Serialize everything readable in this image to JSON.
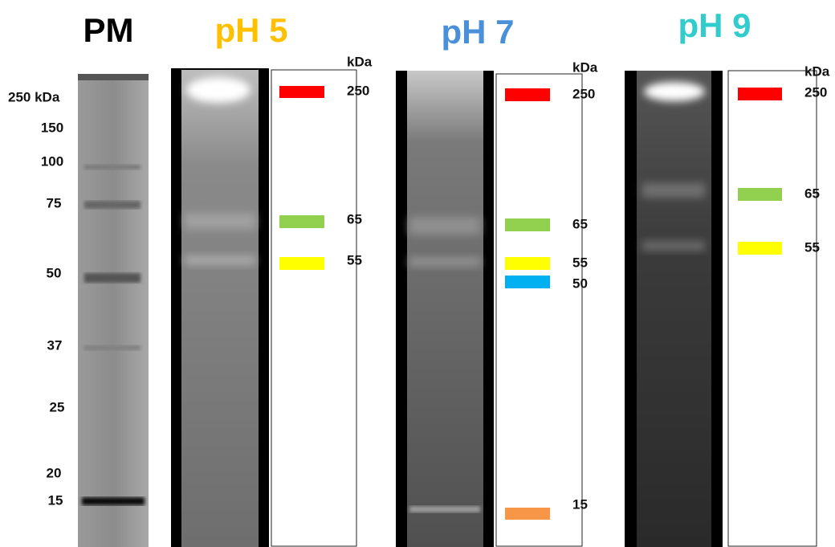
{
  "panels": [
    {
      "title": "PM",
      "color": "#000000",
      "labels": [
        "250 kDa",
        "150",
        "100",
        "75",
        "50",
        "37",
        "25",
        "20",
        "15"
      ]
    },
    {
      "title": "pH 5",
      "color": "#ffc000",
      "unit": "kDa",
      "bands": [
        {
          "label": "250",
          "color": "#ff0000"
        },
        {
          "label": "65",
          "color": "#92d050"
        },
        {
          "label": "55",
          "color": "#ffff00"
        }
      ]
    },
    {
      "title": "pH 7",
      "color": "#4a90d9",
      "unit": "kDa",
      "bands": [
        {
          "label": "250",
          "color": "#ff0000"
        },
        {
          "label": "65",
          "color": "#92d050"
        },
        {
          "label": "55",
          "color": "#ffff00"
        },
        {
          "label": "50",
          "color": "#00b0f0"
        },
        {
          "label": "15",
          "color": "#f79646"
        }
      ]
    },
    {
      "title": "pH 9",
      "color": "#33cccc",
      "unit": "kDa",
      "bands": [
        {
          "label": "250",
          "color": "#ff0000"
        },
        {
          "label": "65",
          "color": "#92d050"
        },
        {
          "label": "55",
          "color": "#ffff00"
        }
      ]
    }
  ]
}
